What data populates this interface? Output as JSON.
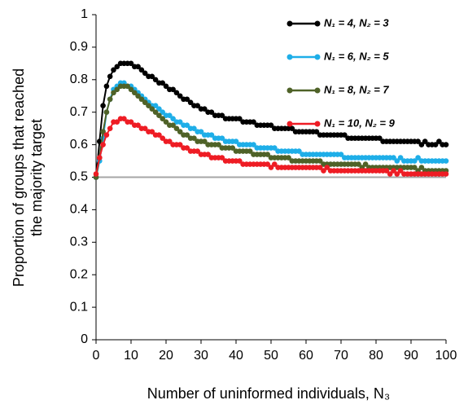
{
  "chart_data": {
    "type": "line",
    "ylabel": [
      "Proportion of groups that reached",
      "the majority target"
    ],
    "xlabel": "Number of uninformed individuals, N₃",
    "x": [
      0,
      1,
      2,
      3,
      4,
      5,
      6,
      7,
      8,
      9,
      10,
      11,
      12,
      13,
      14,
      15,
      16,
      17,
      18,
      19,
      20,
      21,
      22,
      23,
      24,
      25,
      26,
      27,
      28,
      29,
      30,
      31,
      32,
      33,
      34,
      35,
      36,
      37,
      38,
      39,
      40,
      41,
      42,
      43,
      44,
      45,
      46,
      47,
      48,
      49,
      50,
      51,
      52,
      53,
      54,
      55,
      56,
      57,
      58,
      59,
      60,
      61,
      62,
      63,
      64,
      65,
      66,
      67,
      68,
      69,
      70,
      71,
      72,
      73,
      74,
      75,
      76,
      77,
      78,
      79,
      80,
      81,
      82,
      83,
      84,
      85,
      86,
      87,
      88,
      89,
      90,
      91,
      92,
      93,
      94,
      95,
      96,
      97,
      98,
      99,
      100
    ],
    "series": [
      {
        "name": "N₁ = 4, N₂ = 3",
        "color": "#000000",
        "values": [
          0.5,
          0.61,
          0.72,
          0.78,
          0.81,
          0.83,
          0.84,
          0.85,
          0.85,
          0.85,
          0.85,
          0.84,
          0.84,
          0.83,
          0.82,
          0.81,
          0.81,
          0.8,
          0.79,
          0.79,
          0.78,
          0.77,
          0.77,
          0.76,
          0.75,
          0.74,
          0.74,
          0.73,
          0.72,
          0.72,
          0.71,
          0.71,
          0.7,
          0.7,
          0.69,
          0.69,
          0.69,
          0.68,
          0.68,
          0.68,
          0.68,
          0.68,
          0.67,
          0.67,
          0.67,
          0.67,
          0.66,
          0.66,
          0.66,
          0.66,
          0.66,
          0.65,
          0.65,
          0.65,
          0.65,
          0.65,
          0.65,
          0.64,
          0.64,
          0.64,
          0.64,
          0.64,
          0.64,
          0.64,
          0.63,
          0.63,
          0.63,
          0.63,
          0.63,
          0.63,
          0.63,
          0.63,
          0.62,
          0.62,
          0.62,
          0.62,
          0.62,
          0.62,
          0.62,
          0.62,
          0.62,
          0.62,
          0.61,
          0.61,
          0.61,
          0.61,
          0.61,
          0.61,
          0.61,
          0.61,
          0.61,
          0.61,
          0.61,
          0.6,
          0.61,
          0.6,
          0.6,
          0.6,
          0.61,
          0.6,
          0.6
        ]
      },
      {
        "name": "N₁ = 6, N₂ = 5",
        "color": "#1eaee8",
        "values": [
          0.5,
          0.55,
          0.62,
          0.7,
          0.74,
          0.77,
          0.78,
          0.79,
          0.79,
          0.78,
          0.78,
          0.77,
          0.76,
          0.75,
          0.74,
          0.73,
          0.72,
          0.72,
          0.71,
          0.7,
          0.69,
          0.69,
          0.68,
          0.67,
          0.67,
          0.66,
          0.66,
          0.65,
          0.65,
          0.64,
          0.64,
          0.63,
          0.63,
          0.63,
          0.62,
          0.62,
          0.62,
          0.61,
          0.61,
          0.61,
          0.61,
          0.6,
          0.6,
          0.6,
          0.6,
          0.6,
          0.59,
          0.59,
          0.59,
          0.59,
          0.59,
          0.59,
          0.58,
          0.58,
          0.58,
          0.58,
          0.58,
          0.58,
          0.58,
          0.57,
          0.57,
          0.57,
          0.57,
          0.57,
          0.57,
          0.57,
          0.57,
          0.57,
          0.57,
          0.57,
          0.57,
          0.56,
          0.56,
          0.56,
          0.56,
          0.56,
          0.56,
          0.56,
          0.56,
          0.56,
          0.56,
          0.56,
          0.56,
          0.56,
          0.56,
          0.56,
          0.55,
          0.56,
          0.55,
          0.55,
          0.55,
          0.55,
          0.56,
          0.55,
          0.55,
          0.55,
          0.55,
          0.55,
          0.55,
          0.55,
          0.55
        ]
      },
      {
        "name": "N₁ = 8, N₂ = 7",
        "color": "#4f6228",
        "values": [
          0.5,
          0.56,
          0.64,
          0.7,
          0.74,
          0.76,
          0.77,
          0.78,
          0.78,
          0.78,
          0.77,
          0.76,
          0.75,
          0.74,
          0.73,
          0.72,
          0.71,
          0.7,
          0.69,
          0.68,
          0.67,
          0.66,
          0.66,
          0.65,
          0.64,
          0.63,
          0.63,
          0.62,
          0.62,
          0.61,
          0.61,
          0.61,
          0.6,
          0.6,
          0.6,
          0.6,
          0.59,
          0.59,
          0.59,
          0.59,
          0.58,
          0.58,
          0.58,
          0.58,
          0.58,
          0.57,
          0.57,
          0.57,
          0.57,
          0.57,
          0.56,
          0.56,
          0.56,
          0.56,
          0.56,
          0.56,
          0.55,
          0.55,
          0.55,
          0.55,
          0.55,
          0.55,
          0.55,
          0.55,
          0.55,
          0.54,
          0.54,
          0.54,
          0.54,
          0.54,
          0.54,
          0.54,
          0.54,
          0.54,
          0.54,
          0.54,
          0.53,
          0.54,
          0.53,
          0.53,
          0.53,
          0.53,
          0.53,
          0.53,
          0.53,
          0.53,
          0.53,
          0.53,
          0.53,
          0.53,
          0.53,
          0.53,
          0.52,
          0.53,
          0.52,
          0.52,
          0.52,
          0.52,
          0.52,
          0.52,
          0.52
        ]
      },
      {
        "name": "N₁ = 10, N₂ = 9",
        "color": "#ee1c24",
        "values": [
          0.51,
          0.56,
          0.6,
          0.63,
          0.65,
          0.67,
          0.67,
          0.68,
          0.68,
          0.67,
          0.67,
          0.66,
          0.66,
          0.65,
          0.65,
          0.64,
          0.64,
          0.63,
          0.63,
          0.62,
          0.61,
          0.61,
          0.6,
          0.6,
          0.6,
          0.59,
          0.59,
          0.58,
          0.58,
          0.58,
          0.57,
          0.57,
          0.57,
          0.56,
          0.56,
          0.56,
          0.56,
          0.55,
          0.55,
          0.55,
          0.55,
          0.55,
          0.54,
          0.54,
          0.54,
          0.54,
          0.54,
          0.54,
          0.54,
          0.54,
          0.53,
          0.54,
          0.53,
          0.53,
          0.53,
          0.53,
          0.53,
          0.53,
          0.53,
          0.53,
          0.53,
          0.53,
          0.53,
          0.53,
          0.53,
          0.52,
          0.53,
          0.52,
          0.52,
          0.52,
          0.52,
          0.52,
          0.52,
          0.52,
          0.52,
          0.52,
          0.52,
          0.52,
          0.52,
          0.52,
          0.52,
          0.52,
          0.52,
          0.52,
          0.51,
          0.52,
          0.51,
          0.52,
          0.51,
          0.51,
          0.51,
          0.51,
          0.51,
          0.51,
          0.51,
          0.51,
          0.51,
          0.51,
          0.51,
          0.51,
          0.51
        ]
      }
    ],
    "xlim": [
      0,
      100
    ],
    "xticks": [
      0,
      10,
      20,
      30,
      40,
      50,
      60,
      70,
      80,
      90,
      100
    ],
    "ylim": [
      0,
      1
    ],
    "yticks": [
      0,
      0.1,
      0.2,
      0.3,
      0.4,
      0.5,
      0.6,
      0.7,
      0.8,
      0.9,
      1
    ],
    "hline": 0.5,
    "hline_color": "#a6a6a6",
    "legend": "top-right"
  }
}
